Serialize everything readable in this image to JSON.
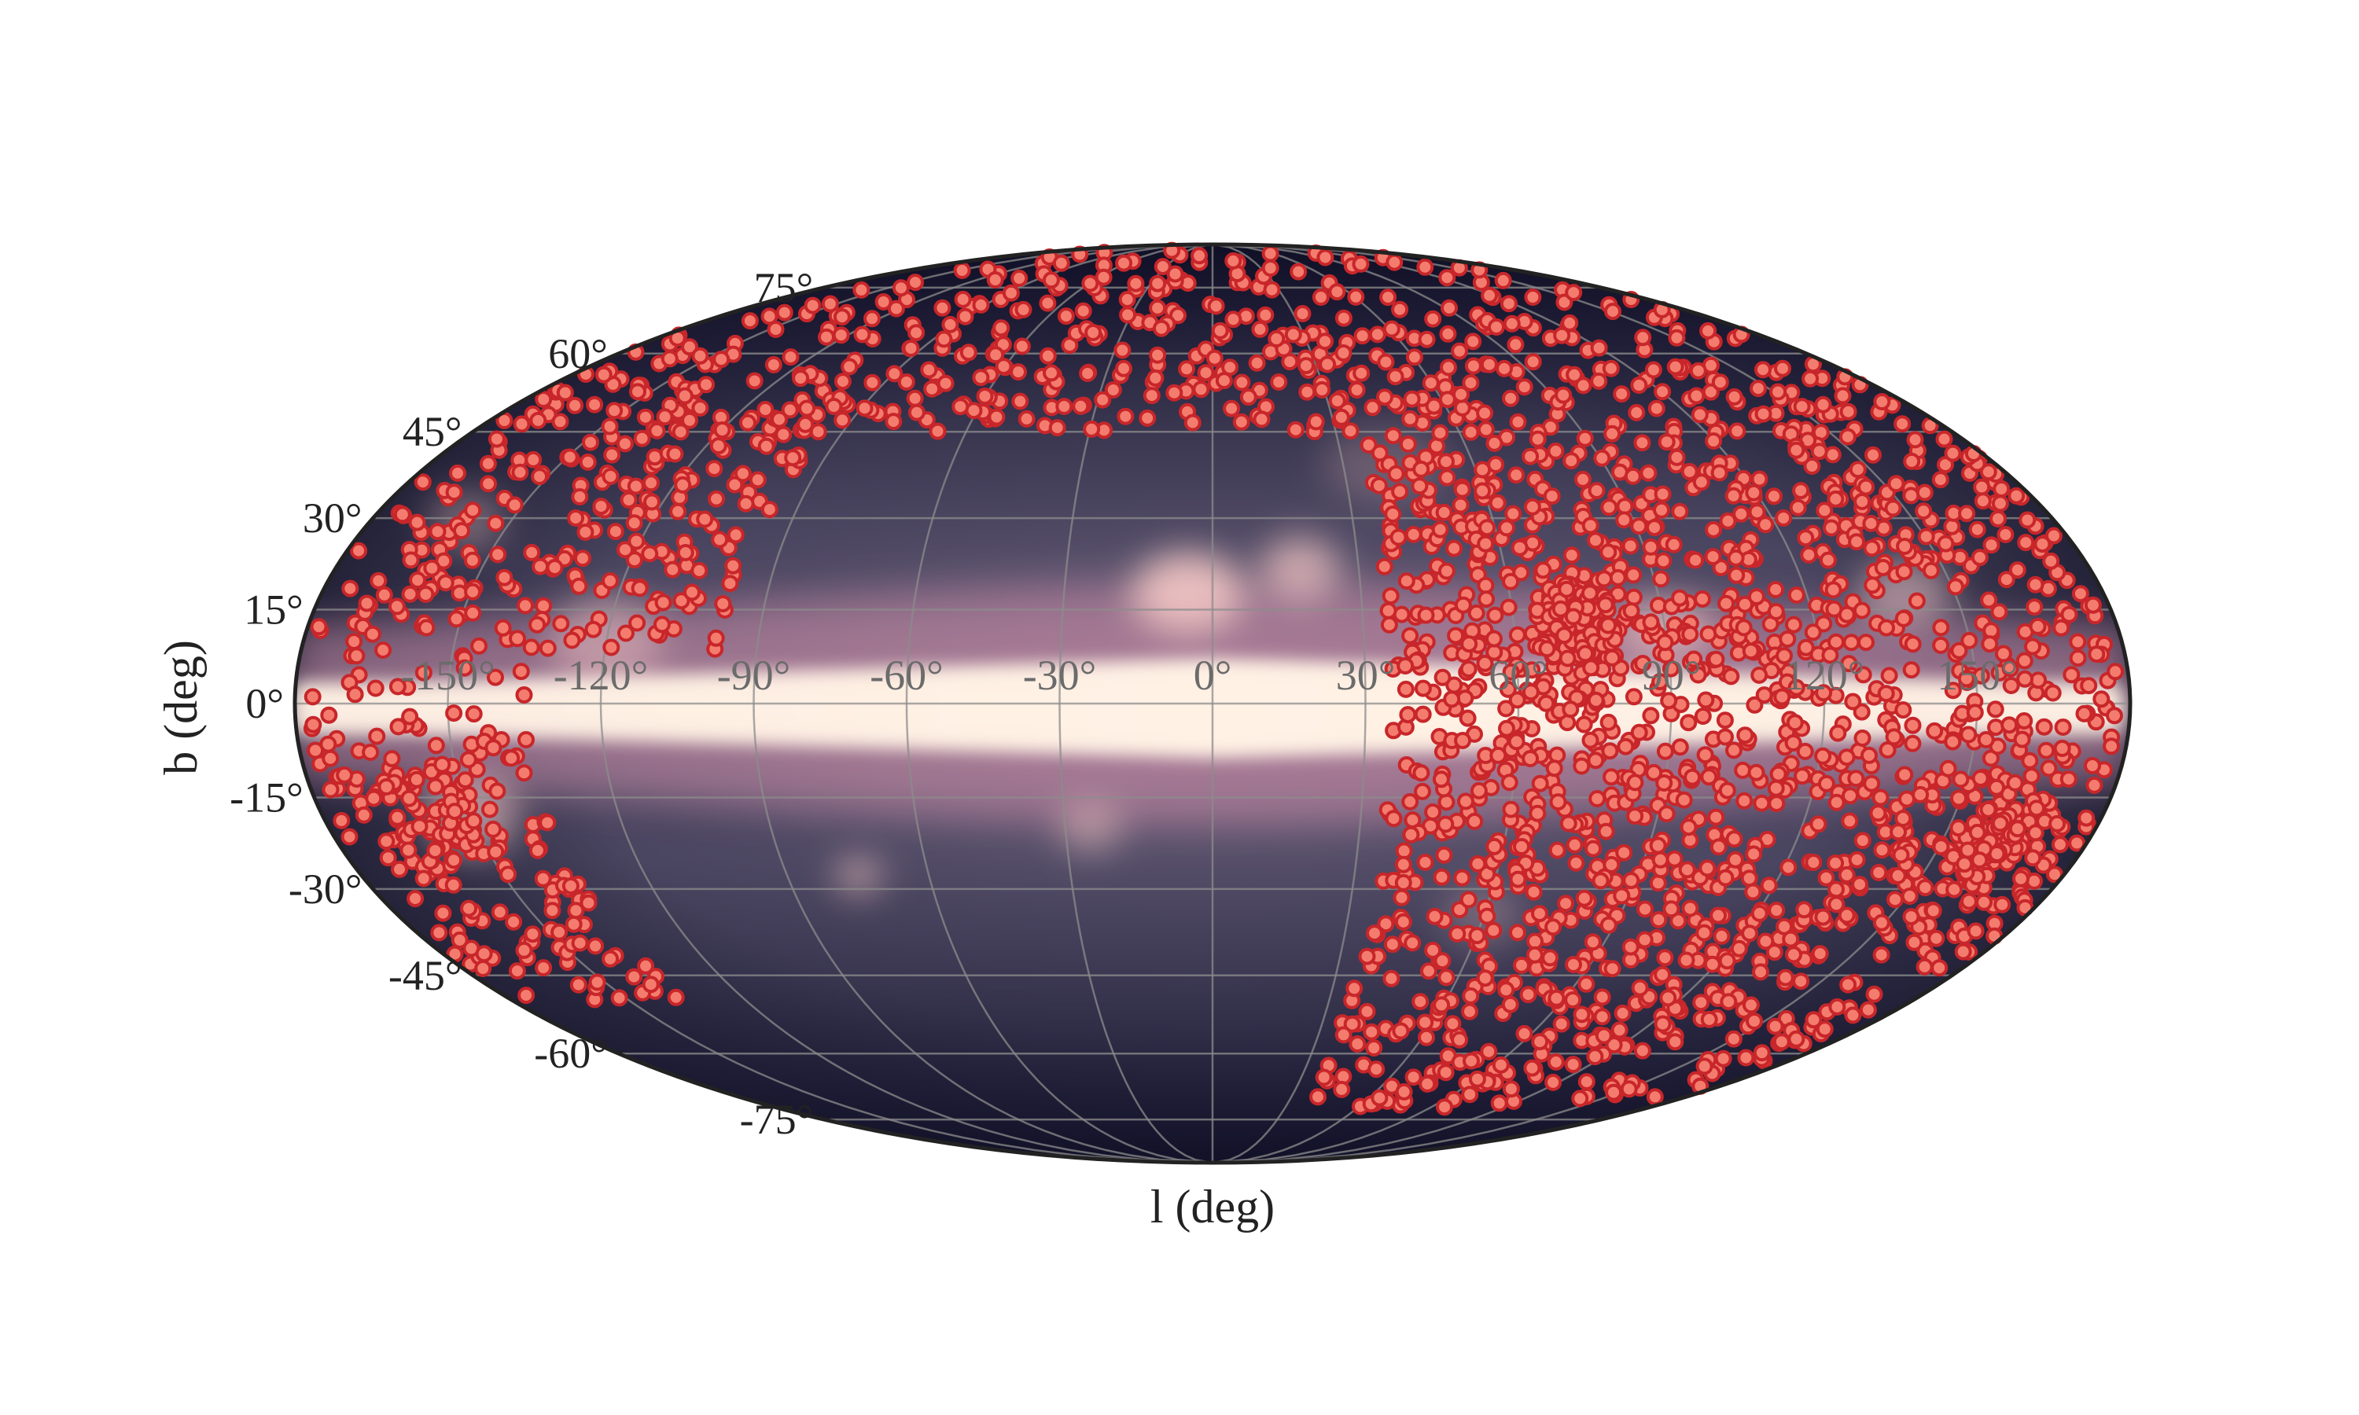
{
  "chart_data": {
    "type": "scatter",
    "projection": "mollweide",
    "background": "galactic dust emission map (dark purple → pink → cream along the plane)",
    "xlabel": "l (deg)",
    "ylabel": "b (deg)",
    "xlim": [
      -180,
      180
    ],
    "ylim": [
      -90,
      90
    ],
    "grid": true,
    "lon_ticks": [
      {
        "value": -150,
        "label": "-150°"
      },
      {
        "value": -120,
        "label": "-120°"
      },
      {
        "value": -90,
        "label": "-90°"
      },
      {
        "value": -60,
        "label": "-60°"
      },
      {
        "value": -30,
        "label": "-30°"
      },
      {
        "value": 0,
        "label": "0°"
      },
      {
        "value": 30,
        "label": "30°"
      },
      {
        "value": 60,
        "label": "60°"
      },
      {
        "value": 90,
        "label": "90°"
      },
      {
        "value": 120,
        "label": "120°"
      },
      {
        "value": 150,
        "label": "150°"
      }
    ],
    "lat_ticks": [
      {
        "value": 75,
        "label": "75°"
      },
      {
        "value": 60,
        "label": "60°"
      },
      {
        "value": 45,
        "label": "45°"
      },
      {
        "value": 30,
        "label": "30°"
      },
      {
        "value": 15,
        "label": "15°"
      },
      {
        "value": 0,
        "label": "0°"
      },
      {
        "value": -15,
        "label": "-15°"
      },
      {
        "value": -30,
        "label": "-30°"
      },
      {
        "value": -45,
        "label": "-45°"
      },
      {
        "value": -60,
        "label": "-60°"
      },
      {
        "value": -75,
        "label": "-75°"
      }
    ],
    "colors": {
      "marker_fill": "#f47c6e",
      "marker_edge": "#c8262a",
      "map_dark": "#12122a",
      "map_mid": "#7a5a7e",
      "map_bright": "#fdf3e8",
      "grid": "#8c8c8c",
      "frame": "#222222"
    },
    "point_regions": [
      {
        "region": "northern cap",
        "l": [
          -180,
          180
        ],
        "b": [
          45,
          88
        ],
        "approx_count": 520
      },
      {
        "region": "western high latitudes",
        "l": [
          -180,
          -100
        ],
        "b": [
          10,
          50
        ],
        "approx_count": 240
      },
      {
        "region": "western south patch",
        "l": [
          -180,
          -140
        ],
        "b": [
          -50,
          10
        ],
        "approx_count": 210
      },
      {
        "region": "eastern sky",
        "l": [
          35,
          180
        ],
        "b": [
          -75,
          45
        ],
        "approx_count": 1500
      },
      {
        "region": "dense cluster near l~70, b~+12",
        "l": [
          60,
          82
        ],
        "b": [
          5,
          20
        ],
        "approx_count": 160
      },
      {
        "region": "cluster near l~160, b~-22",
        "l": [
          150,
          172
        ],
        "b": [
          -30,
          -15
        ],
        "approx_count": 80
      }
    ]
  }
}
